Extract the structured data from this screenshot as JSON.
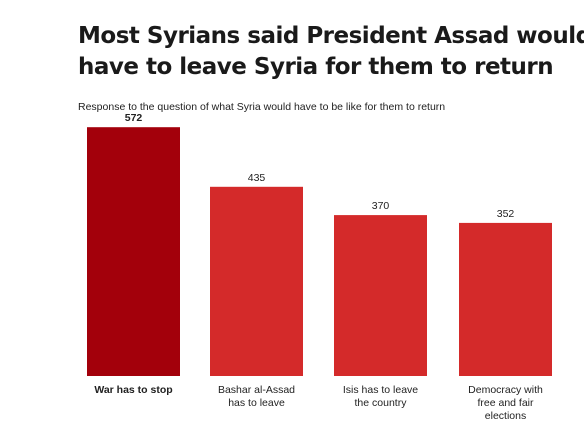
{
  "title_lines": [
    "Most Syrians said President Assad would",
    "have to leave Syria for them to return"
  ],
  "subtitle": "Response to the question of what Syria would have to be like for them to return",
  "colors": {
    "highlight": "#a3000b",
    "bar": "#d42a2a"
  },
  "chart_data": {
    "type": "bar",
    "categories": [
      [
        "War has to stop"
      ],
      [
        "Bashar al-Assad",
        "has to leave"
      ],
      [
        "Isis has to leave",
        "the country"
      ],
      [
        "Democracy with",
        "free and fair",
        "elections"
      ]
    ],
    "values": [
      572,
      435,
      370,
      352
    ],
    "highlight_index": 0,
    "title": "Most Syrians said President Assad would have to leave Syria for them to return",
    "subtitle": "Response to the question of what Syria would have to be like for them to return",
    "xlabel": "",
    "ylabel": "",
    "ylim": [
      0,
      600
    ],
    "grid": false,
    "legend": "none"
  }
}
